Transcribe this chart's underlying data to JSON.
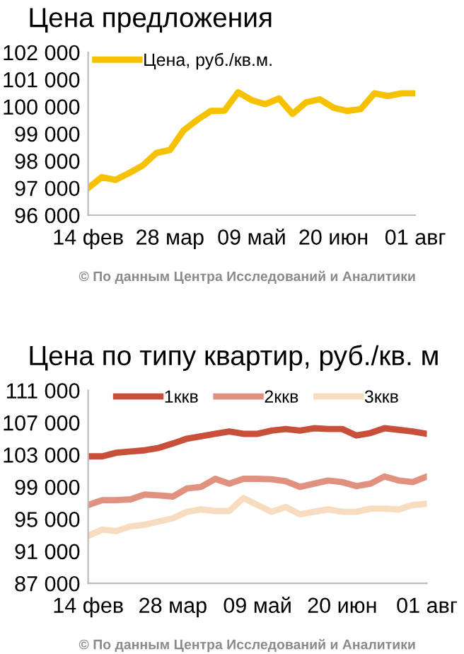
{
  "chart_data": [
    {
      "type": "line",
      "title": "Цена предложения",
      "categories": [
        "14 фев",
        null,
        null,
        null,
        null,
        null,
        "28 мар",
        null,
        null,
        null,
        null,
        null,
        "09 май",
        null,
        null,
        null,
        null,
        null,
        "20 июн",
        null,
        null,
        null,
        null,
        null,
        "01 авг"
      ],
      "series": [
        {
          "name": "Цена, руб./кв.м.",
          "color": "#f5c100",
          "values": [
            97000,
            97400,
            97300,
            97550,
            97830,
            98290,
            98400,
            99120,
            99510,
            99840,
            99850,
            100530,
            100240,
            100090,
            100300,
            99730,
            100160,
            100270,
            99960,
            99840,
            99910,
            100490,
            100390,
            100490,
            100490
          ]
        }
      ],
      "ylim": [
        96000,
        102000
      ],
      "yticks": [
        {
          "value": 96000,
          "label": "96 000"
        },
        {
          "value": 97000,
          "label": "97 000"
        },
        {
          "value": 98000,
          "label": "98 000"
        },
        {
          "value": 99000,
          "label": "99 000"
        },
        {
          "value": 100000,
          "label": "100 000"
        },
        {
          "value": 101000,
          "label": "101 000"
        },
        {
          "value": 102000,
          "label": "102 000"
        }
      ],
      "grid": false,
      "legend": "top left",
      "line_style": "solid",
      "marker": "none",
      "annotations": [
        "© По данным Центра Исследований и Аналитики"
      ]
    },
    {
      "type": "line",
      "title": "Цена по типу квартир, руб./кв. м",
      "categories": [
        "14 фев",
        null,
        null,
        null,
        null,
        null,
        "28 мар",
        null,
        null,
        null,
        null,
        null,
        "09 май",
        null,
        null,
        null,
        null,
        null,
        "20 июн",
        null,
        null,
        null,
        null,
        null,
        "01 авг"
      ],
      "series": [
        {
          "name": "1ккв",
          "color": "#c8503a",
          "values": [
            102800,
            102800,
            103250,
            103400,
            103550,
            103850,
            104400,
            105000,
            105300,
            105600,
            105900,
            105600,
            105600,
            106000,
            106200,
            106000,
            106300,
            106200,
            106200,
            105400,
            105700,
            106300,
            106100,
            105900,
            105600
          ]
        },
        {
          "name": "2ккв",
          "color": "#e0917f",
          "values": [
            96750,
            97350,
            97350,
            97450,
            98050,
            97950,
            97800,
            98800,
            99000,
            100000,
            99400,
            100000,
            100000,
            99950,
            99700,
            99000,
            99400,
            99800,
            99600,
            99100,
            99400,
            100300,
            99800,
            99600,
            100300
          ]
        },
        {
          "name": "3ккв",
          "color": "#f7dcc0",
          "values": [
            92900,
            93700,
            93500,
            94100,
            94300,
            94700,
            95100,
            95900,
            96200,
            96000,
            96000,
            97600,
            96750,
            95900,
            96500,
            95600,
            95900,
            96200,
            95900,
            95900,
            96300,
            96300,
            96200,
            96750,
            96900
          ]
        }
      ],
      "ylim": [
        87000,
        111000
      ],
      "yticks": [
        {
          "value": 87000,
          "label": "87 000"
        },
        {
          "value": 91000,
          "label": "91 000"
        },
        {
          "value": 95000,
          "label": "95 000"
        },
        {
          "value": 99000,
          "label": "99 000"
        },
        {
          "value": 103000,
          "label": "103 000"
        },
        {
          "value": 107000,
          "label": "107 000"
        },
        {
          "value": 111000,
          "label": "111 000"
        }
      ],
      "grid": false,
      "legend": "top",
      "line_style": "solid",
      "marker": "none",
      "annotations": [
        "© По данным Центра Исследований и Аналитики"
      ]
    }
  ]
}
